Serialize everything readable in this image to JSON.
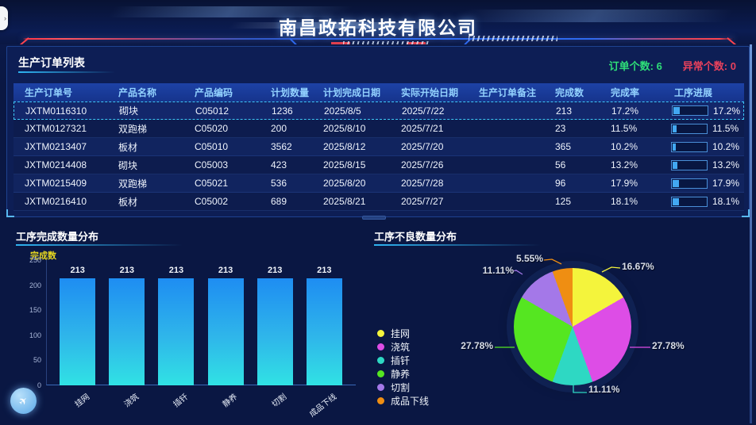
{
  "header": {
    "title": "南昌政拓科技有限公司"
  },
  "orders": {
    "section_title": "生产订单列表",
    "order_count_label": "订单个数:",
    "order_count": "6",
    "abnormal_count_label": "异常个数:",
    "abnormal_count": "0",
    "columns": [
      "生产订单号",
      "产品名称",
      "产品编码",
      "计划数量",
      "计划完成日期",
      "实际开始日期",
      "生产订单备注",
      "完成数",
      "完成率",
      "工序进展"
    ],
    "rows": [
      {
        "order_no": "JXTM0116310",
        "product": "砌块",
        "code": "C05012",
        "plan_qty": "1236",
        "plan_date": "2025/8/5",
        "start_date": "2025/7/22",
        "remark": "",
        "done": "213",
        "rate": "17.2%",
        "progress_label": "17.2%",
        "progress_pct": 17.2,
        "selected": true
      },
      {
        "order_no": "JXTM0127321",
        "product": "双跑梯",
        "code": "C05020",
        "plan_qty": "200",
        "plan_date": "2025/8/10",
        "start_date": "2025/7/21",
        "remark": "",
        "done": "23",
        "rate": "11.5%",
        "progress_label": "11.5%",
        "progress_pct": 11.5,
        "selected": false
      },
      {
        "order_no": "JXTM0213407",
        "product": "板材",
        "code": "C05010",
        "plan_qty": "3562",
        "plan_date": "2025/8/12",
        "start_date": "2025/7/20",
        "remark": "",
        "done": "365",
        "rate": "10.2%",
        "progress_label": "10.2%",
        "progress_pct": 10.2,
        "selected": false
      },
      {
        "order_no": "JXTM0214408",
        "product": "砌块",
        "code": "C05003",
        "plan_qty": "423",
        "plan_date": "2025/8/15",
        "start_date": "2025/7/26",
        "remark": "",
        "done": "56",
        "rate": "13.2%",
        "progress_label": "13.2%",
        "progress_pct": 13.2,
        "selected": false
      },
      {
        "order_no": "JXTM0215409",
        "product": "双跑梯",
        "code": "C05021",
        "plan_qty": "536",
        "plan_date": "2025/8/20",
        "start_date": "2025/7/28",
        "remark": "",
        "done": "96",
        "rate": "17.9%",
        "progress_label": "17.9%",
        "progress_pct": 17.9,
        "selected": false
      },
      {
        "order_no": "JXTM0216410",
        "product": "板材",
        "code": "C05002",
        "plan_qty": "689",
        "plan_date": "2025/8/21",
        "start_date": "2025/7/27",
        "remark": "",
        "done": "125",
        "rate": "18.1%",
        "progress_label": "18.1%",
        "progress_pct": 18.1,
        "selected": false
      }
    ]
  },
  "chart_data": [
    {
      "type": "bar",
      "title": "工序完成数量分布",
      "ylabel": "完成数",
      "categories": [
        "挂网",
        "浇筑",
        "插钎",
        "静养",
        "切割",
        "成品下线"
      ],
      "values": [
        213,
        213,
        213,
        213,
        213,
        213
      ],
      "value_labels": [
        "213",
        "213",
        "213",
        "213",
        "213",
        "213"
      ],
      "ylim": [
        0,
        250
      ],
      "yticks": [
        0,
        50,
        100,
        150,
        200,
        250
      ],
      "grid": false,
      "bar_gradient_top": "#1e8df2",
      "bar_gradient_bottom": "#30e2e4"
    },
    {
      "type": "pie",
      "title": "工序不良数量分布",
      "legend_position": "left",
      "start_angle_deg": 0,
      "slices": [
        {
          "name": "挂网",
          "pct": 16.67,
          "label": "16.67%",
          "color": "#f4f43c"
        },
        {
          "name": "浇筑",
          "pct": 27.78,
          "label": "27.78%",
          "color": "#dd4de6"
        },
        {
          "name": "插钎",
          "pct": 11.11,
          "label": "11.11%",
          "color": "#2ed8c3"
        },
        {
          "name": "静养",
          "pct": 27.78,
          "label": "27.78%",
          "color": "#55e621"
        },
        {
          "name": "切割",
          "pct": 11.11,
          "label": "11.11%",
          "color": "#a478e8"
        },
        {
          "name": "成品下线",
          "pct": 5.55,
          "label": "5.55%",
          "color": "#ef8e12"
        }
      ]
    }
  ],
  "colors": {
    "background": "#0a1743",
    "panel_border": "#1e4290",
    "table_header_bg": "#17389b",
    "header_text": "#93d2ff",
    "accent_cyan": "#2fb4f2",
    "order_count_green": "#2edf78",
    "abnormal_red": "#e8415c",
    "axis_label_yellow": "#e8d820",
    "progress_fill": "#42a8f2",
    "title_line_red": "#ff4450",
    "title_line_blue": "#2e6af0"
  },
  "icons": {
    "side_tab_arrow": "›",
    "float_button_glyph": "✈"
  }
}
